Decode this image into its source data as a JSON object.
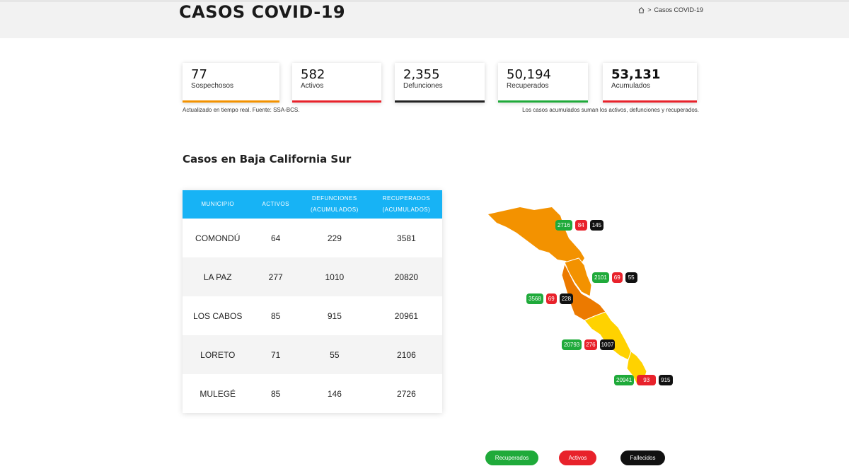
{
  "header": {
    "title": "CASOS COVID-19",
    "breadcrumb": {
      "home_icon": "home-icon",
      "separator": ">",
      "current": "Casos COVID-19"
    }
  },
  "stats": [
    {
      "value": "77",
      "label": "Sospechosos",
      "color": "#f39200"
    },
    {
      "value": "582",
      "label": "Activos",
      "color": "#e8222b"
    },
    {
      "value": "2,355",
      "label": "Defunciones",
      "color": "#222222"
    },
    {
      "value": "50,194",
      "label": "Recuperados",
      "color": "#1faa3a"
    },
    {
      "value": "53,131",
      "label": "Acumulados",
      "color": "#e8222b"
    }
  ],
  "notes": {
    "left": "Actualizado en tiempo real. Fuente: SSA-BCS.",
    "right": "Los casos acumulados suman los activos, defunciones y recuperados."
  },
  "section_title": "Casos en Baja California Sur",
  "table": {
    "headers": [
      "MUNICIPIO",
      "ACTIVOS",
      "DEFUNCIONES (ACUMULADOS)",
      "RECUPERADOS (ACUMULADOS)"
    ],
    "rows": [
      [
        "COMONDÚ",
        "64",
        "229",
        "3581"
      ],
      [
        "LA PAZ",
        "277",
        "1010",
        "20820"
      ],
      [
        "LOS CABOS",
        "85",
        "915",
        "20961"
      ],
      [
        "LORETO",
        "71",
        "55",
        "2106"
      ],
      [
        "MULEGÉ",
        "85",
        "146",
        "2726"
      ]
    ]
  },
  "map_badges": [
    {
      "recuperados": "2716",
      "activos": "84",
      "fallecidos": "145"
    },
    {
      "recuperados": "2101",
      "activos": "69",
      "fallecidos": "55"
    },
    {
      "recuperados": "3568",
      "activos": "69",
      "fallecidos": "228"
    },
    {
      "recuperados": "20793",
      "activos": "276",
      "fallecidos": "1007"
    },
    {
      "recuperados": "20941",
      "activos": "93",
      "fallecidos": "915"
    }
  ],
  "legend": {
    "recuperados": "Recuperados",
    "activos": "Activos",
    "fallecidos": "Fallecidos"
  },
  "colors": {
    "header_bg": "#f2f2f2",
    "table_header": "#17b3f5",
    "green": "#1faa3a",
    "red": "#e8222b",
    "black": "#111111",
    "orange": "#f39200",
    "yellow": "#ffd200",
    "dark_orange": "#ec7a00"
  }
}
